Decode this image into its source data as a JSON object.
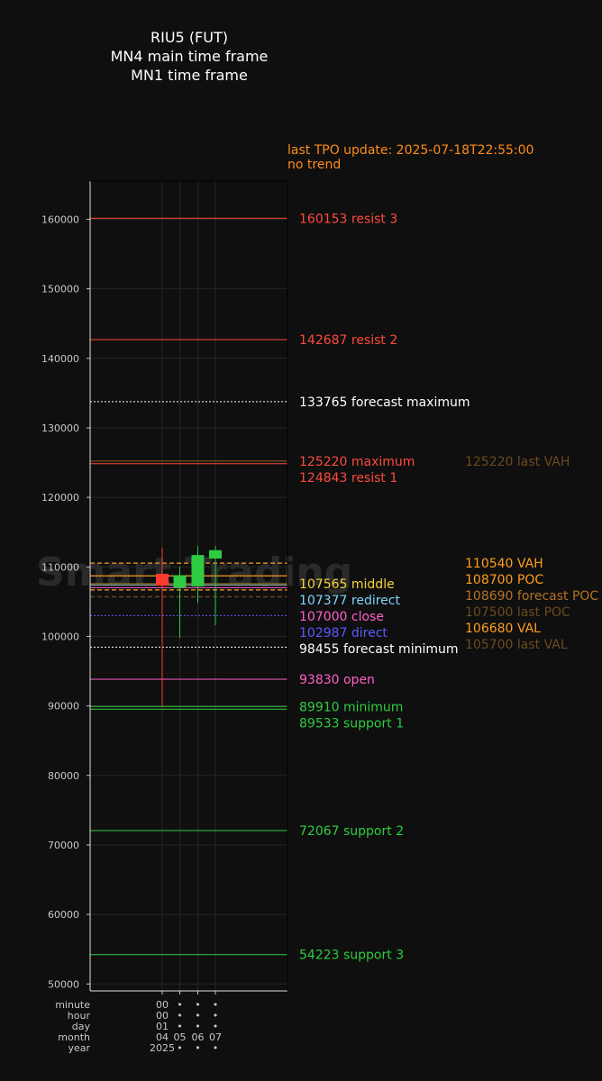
{
  "chart_data": {
    "type": "candlestick",
    "title": [
      "RIU5 (FUT)",
      "MN4 main time frame",
      "MN1 time frame"
    ],
    "status": [
      "last TPO update: 2025-07-18T22:55:00",
      "no trend"
    ],
    "watermark": "Smart Trading",
    "ylim": [
      49000,
      165500
    ],
    "yticks": [
      50000,
      60000,
      70000,
      80000,
      90000,
      100000,
      110000,
      120000,
      130000,
      140000,
      150000,
      160000
    ],
    "grid": true,
    "candles": [
      {
        "x": "04",
        "open": 109000,
        "close": 107300,
        "high": 112800,
        "low": 90000,
        "color": "#ff3b30"
      },
      {
        "x": "05",
        "open": 107000,
        "close": 108800,
        "high": 110000,
        "low": 99800,
        "color": "#2ecc40"
      },
      {
        "x": "06",
        "open": 107200,
        "close": 111700,
        "high": 113000,
        "low": 104800,
        "color": "#2ecc40"
      },
      {
        "x": "07",
        "open": 111200,
        "close": 112400,
        "high": 113000,
        "low": 101600,
        "color": "#2ecc40"
      }
    ],
    "levels": [
      {
        "value": 160153,
        "label": "160153 resist 3",
        "color": "#ff4a3d",
        "style": "solid"
      },
      {
        "value": 142687,
        "label": "142687 resist 2",
        "color": "#ff4a3d",
        "style": "solid"
      },
      {
        "value": 133765,
        "label": "133765 forecast maximum",
        "color": "#ffffff",
        "style": "dotted"
      },
      {
        "value": 125220,
        "label": "125220 maximum",
        "color": "#ff4a3d",
        "style": "solid"
      },
      {
        "value": 124843,
        "label": "124843 resist 1",
        "color": "#ff4a3d",
        "style": "solid"
      },
      {
        "value": 107565,
        "label": "107565 middle",
        "color": "#f5d33a",
        "style": "solid"
      },
      {
        "value": 107377,
        "label": "107377 redirect",
        "color": "#7fd4ff",
        "style": "solid"
      },
      {
        "value": 107000,
        "label": "107000 close",
        "color": "#ff5fc8",
        "style": "solid"
      },
      {
        "value": 102987,
        "label": "102987 direct",
        "color": "#5a5aff",
        "style": "dotted"
      },
      {
        "value": 98455,
        "label": "98455 forecast minimum",
        "color": "#ffffff",
        "style": "dotted"
      },
      {
        "value": 93830,
        "label": "93830 open",
        "color": "#ff5fc8",
        "style": "solid"
      },
      {
        "value": 89910,
        "label": "89910 minimum",
        "color": "#2ecc40",
        "style": "solid"
      },
      {
        "value": 89533,
        "label": "89533 support 1",
        "color": "#2ecc40",
        "style": "solid"
      },
      {
        "value": 72067,
        "label": "72067 support 2",
        "color": "#2ecc40",
        "style": "solid"
      },
      {
        "value": 54223,
        "label": "54223 support 3",
        "color": "#2ecc40",
        "style": "solid"
      }
    ],
    "tpo_levels": [
      {
        "value": 125220,
        "label": "125220 last VAH",
        "color": "#6b4a1e",
        "style": "solid"
      },
      {
        "value": 110540,
        "label": "110540 VAH",
        "color": "#ff9f1a",
        "style": "dashed"
      },
      {
        "value": 108700,
        "label": "108700 POC",
        "color": "#ff9f1a",
        "style": "solid"
      },
      {
        "value": 108690,
        "label": "108690 forecast POC",
        "color": "#b37324",
        "style": "dotted"
      },
      {
        "value": 107500,
        "label": "107500 last POC",
        "color": "#6b4a1e",
        "style": "solid"
      },
      {
        "value": 106680,
        "label": "106680 VAL",
        "color": "#ff9f1a",
        "style": "dashed"
      },
      {
        "value": 105700,
        "label": "105700 last VAL",
        "color": "#6b4a1e",
        "style": "dashed"
      }
    ],
    "x_axis": {
      "row_labels": [
        "minute",
        "hour",
        "day",
        "month",
        "year"
      ],
      "columns": [
        [
          "00",
          "00",
          "01",
          "04",
          "2025"
        ],
        [
          "•",
          "•",
          "•",
          "05",
          "•"
        ],
        [
          "•",
          "•",
          "•",
          "06",
          "•"
        ],
        [
          "•",
          "•",
          "•",
          "07",
          "•"
        ]
      ]
    }
  }
}
